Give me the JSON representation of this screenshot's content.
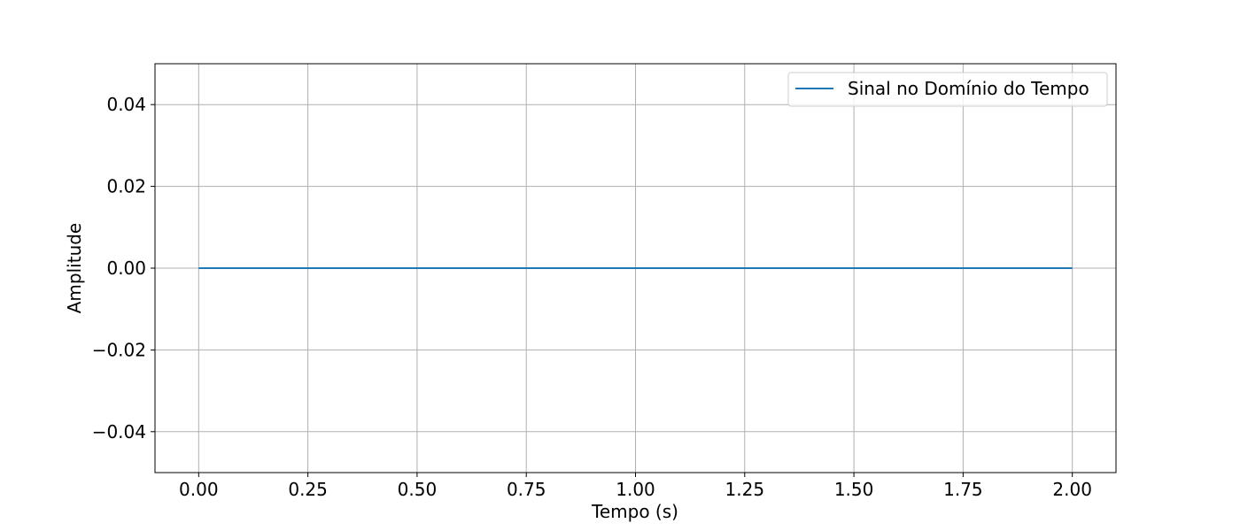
{
  "chart_data": {
    "type": "line",
    "title": "",
    "xlabel": "Tempo (s)",
    "ylabel": "Amplitude",
    "xlim": [
      -0.1,
      2.1
    ],
    "ylim": [
      -0.05,
      0.05
    ],
    "x_ticks": [
      0.0,
      0.25,
      0.5,
      0.75,
      1.0,
      1.25,
      1.5,
      1.75,
      2.0
    ],
    "x_tick_labels": [
      "0.00",
      "0.25",
      "0.50",
      "0.75",
      "1.00",
      "1.25",
      "1.50",
      "1.75",
      "2.00"
    ],
    "y_ticks": [
      -0.04,
      -0.02,
      0.0,
      0.02,
      0.04
    ],
    "y_tick_labels": [
      "−0.04",
      "−0.02",
      "0.00",
      "0.02",
      "0.04"
    ],
    "grid": true,
    "legend_position": "top-right",
    "series": [
      {
        "name": "Sinal no Domínio do Tempo",
        "color": "#1f77b4",
        "x": [
          0.0,
          0.25,
          0.5,
          0.75,
          1.0,
          1.25,
          1.5,
          1.75,
          2.0
        ],
        "y": [
          0.0,
          0.0,
          0.0,
          0.0,
          0.0,
          0.0,
          0.0,
          0.0,
          0.0
        ]
      }
    ]
  }
}
